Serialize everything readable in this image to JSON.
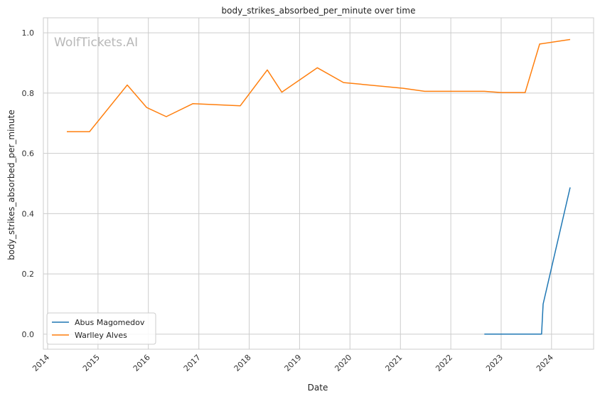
{
  "chart_data": {
    "type": "line",
    "title": "body_strikes_absorbed_per_minute over time",
    "xlabel": "Date",
    "ylabel": "body_strikes_absorbed_per_minute",
    "watermark": "WolfTickets.AI",
    "x_type": "date",
    "xlim": [
      "2013-12-01",
      "2024-11-01"
    ],
    "ylim": [
      -0.05,
      1.05
    ],
    "x_ticks": [
      "2014",
      "2015",
      "2016",
      "2017",
      "2018",
      "2019",
      "2020",
      "2021",
      "2022",
      "2023",
      "2024"
    ],
    "y_ticks": [
      "0.0",
      "0.2",
      "0.4",
      "0.6",
      "0.8",
      "1.0"
    ],
    "grid": true,
    "legend_position": "lower-left",
    "series": [
      {
        "name": "Abus Magomedov",
        "color": "#1f77b4",
        "points": [
          [
            "2022-09-01",
            0.0
          ],
          [
            "2023-02-01",
            0.0
          ],
          [
            "2023-10-21",
            0.0
          ],
          [
            "2023-11-01",
            0.1
          ],
          [
            "2024-05-15",
            0.487
          ]
        ]
      },
      {
        "name": "Warlley Alves",
        "color": "#ff7f0e",
        "points": [
          [
            "2014-05-20",
            0.672
          ],
          [
            "2014-11-01",
            0.672
          ],
          [
            "2015-08-01",
            0.827
          ],
          [
            "2015-12-20",
            0.752
          ],
          [
            "2016-05-10",
            0.722
          ],
          [
            "2016-11-19",
            0.765
          ],
          [
            "2017-10-28",
            0.758
          ],
          [
            "2018-05-12",
            0.877
          ],
          [
            "2018-08-25",
            0.803
          ],
          [
            "2019-05-10",
            0.884
          ],
          [
            "2019-11-16",
            0.835
          ],
          [
            "2021-01-20",
            0.816
          ],
          [
            "2021-06-26",
            0.806
          ],
          [
            "2022-09-01",
            0.806
          ],
          [
            "2023-01-01",
            0.802
          ],
          [
            "2023-06-24",
            0.802
          ],
          [
            "2023-10-07",
            0.963
          ],
          [
            "2024-05-15",
            0.978
          ]
        ]
      }
    ]
  }
}
